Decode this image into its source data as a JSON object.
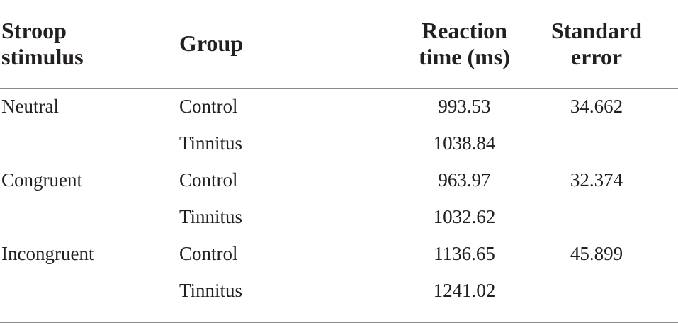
{
  "table": {
    "headers": {
      "stimulus": [
        "Stroop",
        "stimulus"
      ],
      "group": [
        "Group"
      ],
      "reaction_time": [
        "Reaction",
        "time (ms)"
      ],
      "standard_error": [
        "Standard",
        "error"
      ]
    },
    "rows": [
      {
        "stimulus": "Neutral",
        "group": "Control",
        "reaction_time": "993.53",
        "standard_error": "34.662"
      },
      {
        "stimulus": "",
        "group": "Tinnitus",
        "reaction_time": "1038.84",
        "standard_error": ""
      },
      {
        "stimulus": "Congruent",
        "group": "Control",
        "reaction_time": "963.97",
        "standard_error": "32.374"
      },
      {
        "stimulus": "",
        "group": "Tinnitus",
        "reaction_time": "1032.62",
        "standard_error": ""
      },
      {
        "stimulus": "Incongruent",
        "group": "Control",
        "reaction_time": "1136.65",
        "standard_error": "45.899"
      },
      {
        "stimulus": "",
        "group": "Tinnitus",
        "reaction_time": "1241.02",
        "standard_error": ""
      }
    ]
  }
}
